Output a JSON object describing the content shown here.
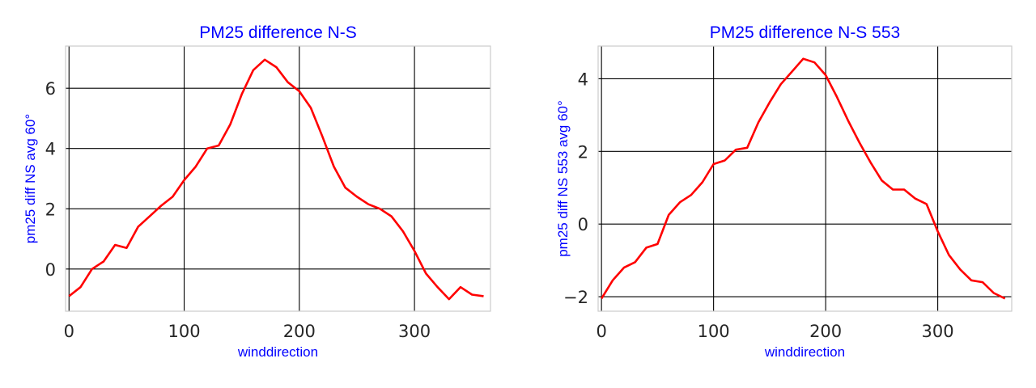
{
  "chart_data": [
    {
      "type": "line",
      "title": "PM25 difference N-S",
      "xlabel": "winddirection",
      "ylabel": "pm25 diff NS avg 60°",
      "xlim": [
        -3,
        366
      ],
      "ylim": [
        -1.4,
        7.4
      ],
      "xticks": [
        0,
        100,
        200,
        300
      ],
      "yticks": [
        0,
        2,
        4,
        6
      ],
      "grid": true,
      "line_color": "#ff0000",
      "series": [
        {
          "x": [
            0,
            10,
            20,
            30,
            40,
            50,
            60,
            70,
            80,
            90,
            100,
            110,
            120,
            130,
            140,
            150,
            160,
            170,
            180,
            190,
            200,
            210,
            220,
            230,
            240,
            250,
            260,
            270,
            280,
            290,
            300,
            310,
            320,
            330,
            340,
            350,
            360
          ],
          "values": [
            -0.9,
            -0.6,
            0.0,
            0.25,
            0.8,
            0.7,
            1.4,
            1.75,
            2.1,
            2.4,
            2.95,
            3.4,
            4.0,
            4.1,
            4.8,
            5.8,
            6.6,
            6.95,
            6.7,
            6.2,
            5.9,
            5.35,
            4.4,
            3.4,
            2.7,
            2.4,
            2.15,
            2.0,
            1.75,
            1.25,
            0.6,
            -0.15,
            -0.6,
            -1.0,
            -0.6,
            -0.85,
            -0.9
          ]
        }
      ]
    },
    {
      "type": "line",
      "title": "PM25 difference N-S 553",
      "xlabel": "winddirection",
      "ylabel": "pm25 diff NS 553 avg 60°",
      "xlim": [
        -3,
        366
      ],
      "ylim": [
        -2.4,
        4.9
      ],
      "xticks": [
        0,
        100,
        200,
        300
      ],
      "yticks": [
        -2,
        0,
        2,
        4
      ],
      "grid": true,
      "line_color": "#ff0000",
      "series": [
        {
          "x": [
            0,
            10,
            20,
            30,
            40,
            50,
            60,
            70,
            80,
            90,
            100,
            110,
            120,
            130,
            140,
            150,
            160,
            170,
            180,
            190,
            200,
            210,
            220,
            230,
            240,
            250,
            260,
            270,
            280,
            290,
            300,
            310,
            320,
            330,
            340,
            350,
            360
          ],
          "values": [
            -2.05,
            -1.55,
            -1.2,
            -1.05,
            -0.65,
            -0.55,
            0.25,
            0.6,
            0.8,
            1.15,
            1.65,
            1.75,
            2.05,
            2.1,
            2.8,
            3.35,
            3.85,
            4.2,
            4.55,
            4.45,
            4.1,
            3.5,
            2.85,
            2.25,
            1.7,
            1.2,
            0.95,
            0.95,
            0.7,
            0.55,
            -0.2,
            -0.85,
            -1.25,
            -1.55,
            -1.6,
            -1.9,
            -2.05
          ]
        }
      ]
    }
  ]
}
